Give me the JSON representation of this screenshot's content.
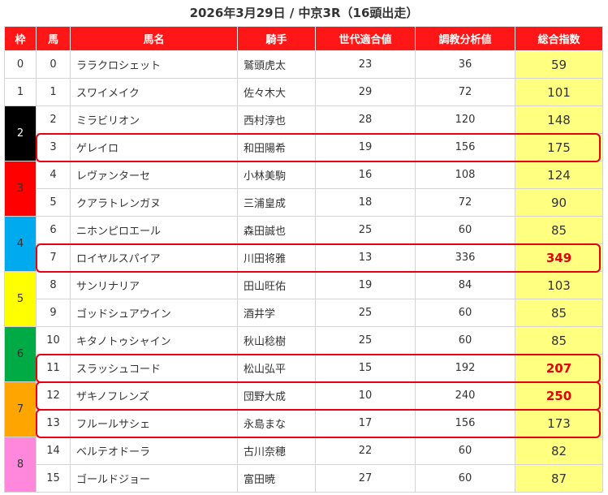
{
  "title": "2026年3月29日 / 中京3R（16頭出走）",
  "headers": [
    "枠",
    "馬",
    "馬名",
    "騎手",
    "世代適合値",
    "調教分析値",
    "総合指数"
  ],
  "waku_groups": [
    {
      "label": "0",
      "rows": 1,
      "bg": "#ffffff",
      "fg": "#333333"
    },
    {
      "label": "1",
      "rows": 1,
      "bg": "#ffffff",
      "fg": "#333333"
    },
    {
      "label": "2",
      "rows": 2,
      "bg": "#000000",
      "fg": "#ffffff"
    },
    {
      "label": "3",
      "rows": 2,
      "bg": "#ff0000",
      "fg": "#333333"
    },
    {
      "label": "4",
      "rows": 2,
      "bg": "#00aaee",
      "fg": "#333333"
    },
    {
      "label": "5",
      "rows": 2,
      "bg": "#ffff00",
      "fg": "#333333"
    },
    {
      "label": "6",
      "rows": 2,
      "bg": "#00aa44",
      "fg": "#333333"
    },
    {
      "label": "7",
      "rows": 2,
      "bg": "#ffa500",
      "fg": "#333333"
    },
    {
      "label": "8",
      "rows": 2,
      "bg": "#ff88dd",
      "fg": "#333333"
    }
  ],
  "rows": [
    {
      "uma": "0",
      "name": "ララクロシェット",
      "jockey": "鷲頭虎太",
      "sedai": "23",
      "chokyo": "36",
      "total": "59",
      "hl": false
    },
    {
      "uma": "1",
      "name": "スワイメイク",
      "jockey": "佐々木大",
      "sedai": "29",
      "chokyo": "72",
      "total": "101",
      "hl": false
    },
    {
      "uma": "2",
      "name": "ミラビリオン",
      "jockey": "西村淳也",
      "sedai": "28",
      "chokyo": "120",
      "total": "148",
      "hl": false
    },
    {
      "uma": "3",
      "name": "ゲレイロ",
      "jockey": "和田陽希",
      "sedai": "19",
      "chokyo": "156",
      "total": "175",
      "hl": false
    },
    {
      "uma": "4",
      "name": "レヴァンターセ",
      "jockey": "小林美駒",
      "sedai": "16",
      "chokyo": "108",
      "total": "124",
      "hl": false
    },
    {
      "uma": "5",
      "name": "クアラトレンガヌ",
      "jockey": "三浦皇成",
      "sedai": "18",
      "chokyo": "72",
      "total": "90",
      "hl": false
    },
    {
      "uma": "6",
      "name": "ニホンピロエール",
      "jockey": "森田誠也",
      "sedai": "25",
      "chokyo": "60",
      "total": "85",
      "hl": false
    },
    {
      "uma": "7",
      "name": "ロイヤルスパイア",
      "jockey": "川田将雅",
      "sedai": "13",
      "chokyo": "336",
      "total": "349",
      "hl": true
    },
    {
      "uma": "8",
      "name": "サンリナリア",
      "jockey": "田山旺佑",
      "sedai": "19",
      "chokyo": "84",
      "total": "103",
      "hl": false
    },
    {
      "uma": "9",
      "name": "ゴッドシュアウイン",
      "jockey": "酒井学",
      "sedai": "25",
      "chokyo": "60",
      "total": "85",
      "hl": false
    },
    {
      "uma": "10",
      "name": "キタノトゥシャイン",
      "jockey": "秋山稔樹",
      "sedai": "25",
      "chokyo": "60",
      "total": "85",
      "hl": false
    },
    {
      "uma": "11",
      "name": "スラッシュコード",
      "jockey": "松山弘平",
      "sedai": "15",
      "chokyo": "192",
      "total": "207",
      "hl": true
    },
    {
      "uma": "12",
      "name": "ザキノフレンズ",
      "jockey": "団野大成",
      "sedai": "10",
      "chokyo": "240",
      "total": "250",
      "hl": true
    },
    {
      "uma": "13",
      "name": "フルールサシェ",
      "jockey": "永島まな",
      "sedai": "17",
      "chokyo": "156",
      "total": "173",
      "hl": false
    },
    {
      "uma": "14",
      "name": "ベルテオドーラ",
      "jockey": "古川奈穂",
      "sedai": "22",
      "chokyo": "60",
      "total": "82",
      "hl": false
    },
    {
      "uma": "15",
      "name": "ゴールドジョー",
      "jockey": "富田暁",
      "sedai": "27",
      "chokyo": "60",
      "total": "87",
      "hl": false
    }
  ],
  "framed_rows": [
    3,
    7,
    11,
    12,
    13
  ],
  "colors": {
    "header_bg": "#ff1717",
    "total_bg": "#ffff80",
    "highlight_text": "#e60000",
    "frame": "#e60012"
  }
}
